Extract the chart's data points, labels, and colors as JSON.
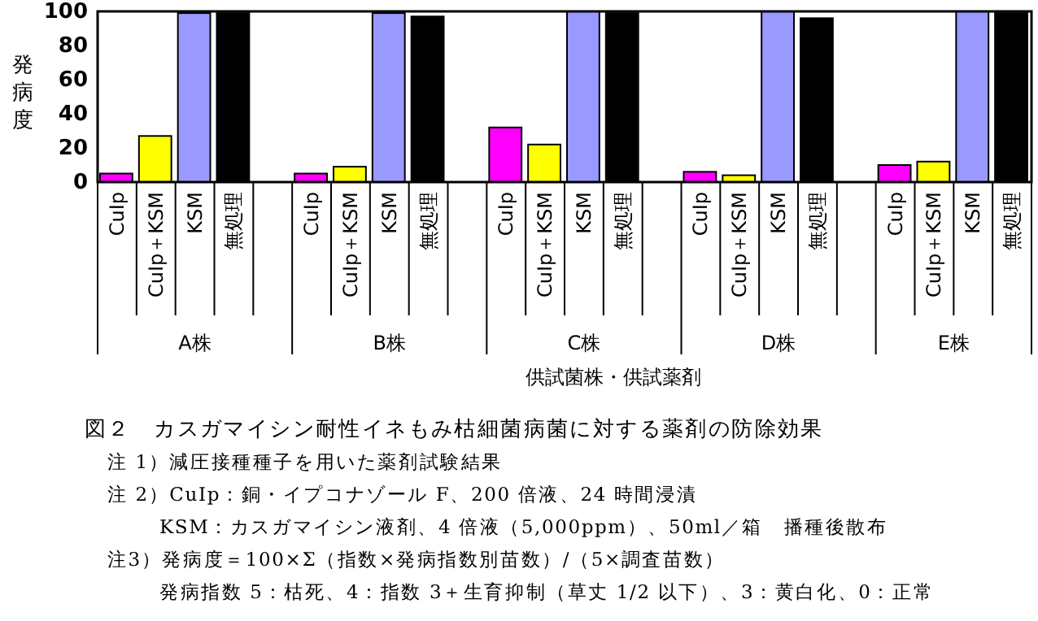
{
  "chart_data": {
    "type": "bar",
    "title": "図２　カスガマイシン耐性イネもみ枯細菌病菌に対する薬剤の防除効果",
    "ylabel": "発病度",
    "xlabel": "供試菌株・供試薬剤",
    "categories": [
      "CuIp",
      "CuIp＋KSM",
      "KSM",
      "無処理",
      "CuIp",
      "CuIp＋KSM",
      "KSM",
      "無処理",
      "CuIp",
      "CuIp＋KSM",
      "KSM",
      "無処理",
      "CuIp",
      "CuIp＋KSM",
      "KSM",
      "無処理",
      "CuIp",
      "CuIp＋KSM",
      "KSM",
      "無処理"
    ],
    "values": [
      5,
      27,
      99,
      99,
      5,
      9,
      99,
      97,
      32,
      22,
      100,
      99,
      6,
      4,
      100,
      96,
      10,
      12,
      100,
      99
    ],
    "colors": [
      "#ff00ff",
      "#ffff00",
      "#9999ff",
      "#000000",
      "#ff00ff",
      "#ffff00",
      "#9999ff",
      "#000000",
      "#ff00ff",
      "#ffff00",
      "#9999ff",
      "#000000",
      "#ff00ff",
      "#ffff00",
      "#9999ff",
      "#000000",
      "#ff00ff",
      "#ffff00",
      "#9999ff",
      "#000000"
    ],
    "ylim": [
      0,
      100
    ],
    "yticks": [
      0,
      20,
      40,
      60,
      80,
      100
    ],
    "grid": false,
    "annotations": [
      "A株",
      "B株",
      "C株",
      "D株",
      "E株",
      "注 1）減圧接種種子を用いた薬剤試験結果",
      "注 2）CuIp：銅・イプコナゾール F、200 倍液、24 時間浸漬",
      "KSM：カスガマイシン液剤、4 倍液（5,000ppm）、50ml／箱　播種後散布",
      "注3）発病度＝100×Σ（指数×発病指数別苗数）/（5×調査苗数）",
      "発病指数 5：枯死、4：指数 3＋生育抑制（草丈 1/2 以下）、3：黄白化、0：正常"
    ]
  }
}
